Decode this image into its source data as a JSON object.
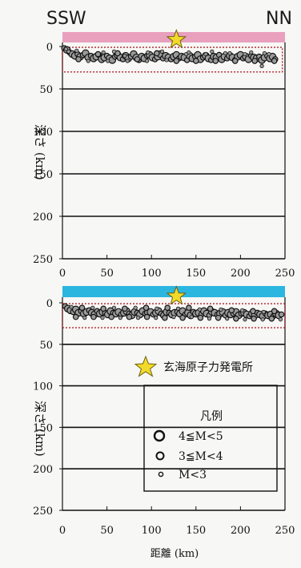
{
  "header": {
    "left_dir": "SSW",
    "right_dir": "NN"
  },
  "axes": {
    "ylabel": "深さ (km)",
    "xlabel": "距離 (km)"
  },
  "legend": {
    "site_label": "玄海原子力発電所",
    "title": "凡例",
    "items": [
      "4≦M<5",
      "3≦M<4",
      "M<3"
    ]
  },
  "colors": {
    "top_band": "#e8a0bd",
    "bottom_band": "#2bb6e0",
    "star_fill": "#f2da2a",
    "dotted_box": "#b2202a"
  },
  "chart_data": [
    {
      "type": "scatter",
      "panel": "top",
      "xlabel": "",
      "ylabel": "深さ (km)",
      "xlim": [
        0,
        250
      ],
      "ylim": [
        250,
        0
      ],
      "y_ticks": [
        0,
        50,
        100,
        150,
        200,
        250
      ],
      "x_ticks": [
        0,
        50,
        100,
        150,
        200,
        250
      ],
      "station": {
        "x": 128,
        "y": -8
      },
      "dotted_box": {
        "x": [
          0,
          247
        ],
        "y": [
          1,
          30
        ]
      },
      "points_x": [
        2,
        5,
        8,
        11,
        14,
        17,
        20,
        23,
        26,
        29,
        32,
        35,
        38,
        41,
        44,
        47,
        50,
        53,
        56,
        59,
        62,
        65,
        68,
        71,
        74,
        77,
        80,
        83,
        86,
        89,
        92,
        95,
        98,
        101,
        104,
        107,
        110,
        113,
        116,
        119,
        122,
        125,
        128,
        131,
        134,
        137,
        140,
        143,
        146,
        149,
        152,
        155,
        158,
        161,
        164,
        167,
        170,
        173,
        176,
        179,
        182,
        185,
        188,
        191,
        194,
        197,
        200,
        203,
        206,
        209,
        212,
        215,
        218,
        221,
        224,
        227,
        230,
        233,
        236,
        239,
        7,
        18,
        29,
        40,
        51,
        62,
        73,
        84,
        95,
        106,
        117,
        128,
        139,
        150,
        161,
        172,
        183,
        194,
        205,
        216,
        227,
        238,
        4,
        16,
        46,
        58,
        70,
        96,
        112,
        142,
        168,
        188,
        212,
        232,
        224
      ],
      "points_y": [
        2,
        4,
        7,
        9,
        11,
        9,
        12,
        10,
        8,
        13,
        11,
        14,
        12,
        10,
        15,
        13,
        11,
        14,
        16,
        12,
        10,
        13,
        15,
        11,
        14,
        12,
        9,
        13,
        16,
        12,
        14,
        11,
        10,
        13,
        15,
        12,
        9,
        14,
        11,
        13,
        15,
        12,
        10,
        14,
        12,
        13,
        16,
        11,
        14,
        12,
        10,
        15,
        13,
        11,
        14,
        16,
        12,
        13,
        10,
        15,
        12,
        14,
        11,
        13,
        16,
        12,
        10,
        14,
        12,
        15,
        11,
        13,
        14,
        12,
        16,
        13,
        11,
        14,
        12,
        15,
        6,
        15,
        17,
        9,
        17,
        8,
        17,
        15,
        17,
        8,
        16,
        17,
        9,
        17,
        9,
        17,
        8,
        17,
        9,
        17,
        8,
        17,
        3,
        5,
        7,
        6,
        11,
        7,
        6,
        7,
        6,
        8,
        7,
        9,
        23
      ],
      "points_size": [
        2,
        3,
        2,
        3,
        3,
        2,
        3,
        2,
        3,
        3,
        2,
        3,
        3,
        2,
        3,
        3,
        2,
        3,
        3,
        2,
        3,
        3,
        2,
        3,
        3,
        2,
        3,
        3,
        2,
        3,
        3,
        2,
        3,
        3,
        2,
        3,
        3,
        2,
        3,
        3,
        2,
        3,
        3,
        2,
        3,
        3,
        2,
        3,
        3,
        2,
        3,
        3,
        2,
        3,
        3,
        2,
        3,
        3,
        2,
        3,
        3,
        2,
        3,
        3,
        2,
        3,
        3,
        2,
        3,
        3,
        2,
        3,
        3,
        2,
        3,
        3,
        2,
        3,
        3,
        2,
        1,
        2,
        1,
        2,
        1,
        2,
        1,
        2,
        1,
        2,
        1,
        2,
        1,
        2,
        1,
        2,
        1,
        2,
        1,
        2,
        1,
        2,
        1,
        1,
        1,
        1,
        1,
        1,
        1,
        1,
        1,
        1,
        1,
        1,
        1
      ]
    },
    {
      "type": "scatter",
      "panel": "bottom",
      "xlabel": "距離 (km)",
      "ylabel": "深さ (km)",
      "xlim": [
        0,
        250
      ],
      "ylim": [
        250,
        0
      ],
      "y_ticks": [
        0,
        50,
        100,
        150,
        200,
        250
      ],
      "x_ticks": [
        0,
        50,
        100,
        150,
        200,
        250
      ],
      "station": {
        "x": 128,
        "y": -8
      },
      "dotted_box": {
        "x": [
          0,
          250
        ],
        "y": [
          1,
          30
        ]
      },
      "points_x": [
        3,
        6,
        9,
        12,
        15,
        18,
        21,
        24,
        27,
        30,
        33,
        36,
        39,
        42,
        45,
        48,
        51,
        54,
        57,
        60,
        63,
        66,
        69,
        72,
        75,
        78,
        81,
        84,
        87,
        90,
        93,
        96,
        99,
        102,
        105,
        108,
        111,
        114,
        117,
        120,
        123,
        126,
        129,
        132,
        135,
        138,
        141,
        144,
        147,
        150,
        153,
        156,
        159,
        162,
        165,
        168,
        171,
        174,
        177,
        180,
        183,
        186,
        189,
        192,
        195,
        198,
        201,
        204,
        207,
        210,
        213,
        216,
        219,
        222,
        225,
        228,
        231,
        234,
        237,
        240,
        243,
        246,
        10,
        22,
        34,
        46,
        58,
        70,
        82,
        94,
        106,
        118,
        130,
        142,
        154,
        166,
        178,
        190,
        202,
        214,
        226,
        238,
        15,
        25,
        35,
        45,
        55,
        65,
        75,
        85,
        95,
        105,
        115,
        125,
        135,
        145,
        155,
        165,
        175,
        185,
        195,
        205,
        215,
        225,
        235,
        245
      ],
      "points_y": [
        4,
        7,
        9,
        11,
        8,
        12,
        10,
        13,
        11,
        9,
        12,
        14,
        10,
        13,
        11,
        12,
        14,
        10,
        12,
        13,
        11,
        14,
        12,
        10,
        13,
        15,
        11,
        12,
        14,
        10,
        13,
        12,
        11,
        14,
        12,
        10,
        13,
        15,
        11,
        12,
        14,
        12,
        11,
        13,
        10,
        14,
        12,
        15,
        11,
        13,
        12,
        14,
        10,
        13,
        15,
        11,
        12,
        14,
        13,
        11,
        15,
        12,
        14,
        13,
        11,
        15,
        13,
        12,
        14,
        16,
        13,
        15,
        12,
        14,
        16,
        13,
        15,
        14,
        16,
        13,
        15,
        14,
        5,
        6,
        6,
        7,
        6,
        7,
        6,
        6,
        7,
        6,
        7,
        6,
        8,
        7,
        8,
        9,
        9,
        10,
        11,
        10,
        17,
        18,
        17,
        18,
        17,
        18,
        17,
        18,
        17,
        18,
        18,
        17,
        18,
        17,
        18,
        19,
        18,
        19,
        19,
        20,
        19,
        20,
        19,
        20
      ],
      "points_size": [
        2,
        3,
        3,
        2,
        3,
        3,
        2,
        3,
        3,
        2,
        3,
        3,
        2,
        3,
        3,
        2,
        3,
        3,
        2,
        3,
        3,
        2,
        3,
        3,
        2,
        3,
        3,
        2,
        3,
        3,
        2,
        3,
        3,
        2,
        3,
        3,
        2,
        3,
        3,
        2,
        3,
        3,
        2,
        3,
        3,
        2,
        3,
        3,
        2,
        3,
        3,
        2,
        3,
        3,
        2,
        3,
        3,
        2,
        3,
        3,
        2,
        3,
        3,
        2,
        3,
        3,
        2,
        3,
        3,
        2,
        3,
        3,
        2,
        3,
        3,
        2,
        3,
        3,
        2,
        3,
        3,
        2,
        1,
        2,
        1,
        2,
        1,
        2,
        1,
        2,
        1,
        2,
        1,
        2,
        1,
        2,
        1,
        2,
        1,
        2,
        1,
        2,
        2,
        1,
        2,
        1,
        2,
        1,
        2,
        1,
        2,
        1,
        2,
        1,
        2,
        1,
        2,
        1,
        2,
        1,
        2,
        1,
        2,
        1,
        2,
        1
      ]
    }
  ]
}
